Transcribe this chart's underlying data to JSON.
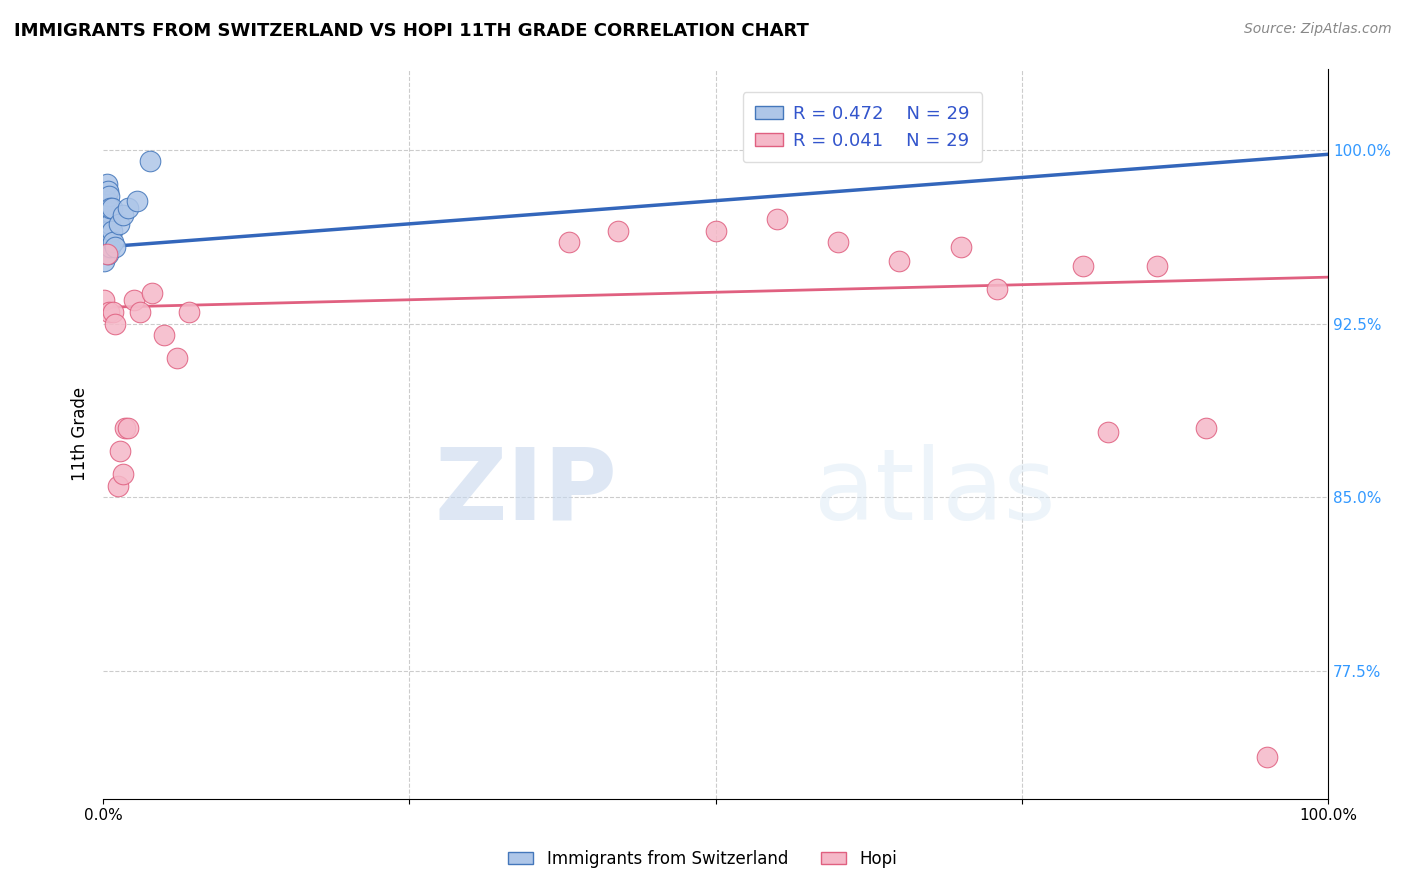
{
  "title": "IMMIGRANTS FROM SWITZERLAND VS HOPI 11TH GRADE CORRELATION CHART",
  "source": "Source: ZipAtlas.com",
  "ylabel": "11th Grade",
  "yticks": [
    0.775,
    0.85,
    0.925,
    1.0
  ],
  "ytick_labels": [
    "77.5%",
    "85.0%",
    "92.5%",
    "100.0%"
  ],
  "xmin": 0.0,
  "xmax": 1.0,
  "ymin": 0.72,
  "ymax": 1.035,
  "legend_r1": "R = 0.472",
  "legend_n1": "N = 29",
  "legend_r2": "R = 0.041",
  "legend_n2": "N = 29",
  "color_swiss_fill": "#aec6e8",
  "color_swiss_edge": "#4477bb",
  "color_hopi_fill": "#f5b8c8",
  "color_hopi_edge": "#e06080",
  "color_swiss_line": "#3366bb",
  "color_hopi_line": "#e06080",
  "watermark_zip": "ZIP",
  "watermark_atlas": "atlas",
  "swiss_x": [
    0.001,
    0.001,
    0.001,
    0.002,
    0.002,
    0.002,
    0.003,
    0.003,
    0.003,
    0.003,
    0.004,
    0.004,
    0.004,
    0.004,
    0.005,
    0.005,
    0.005,
    0.006,
    0.006,
    0.006,
    0.007,
    0.007,
    0.008,
    0.01,
    0.013,
    0.016,
    0.02,
    0.028,
    0.038
  ],
  "swiss_y": [
    0.952,
    0.962,
    0.972,
    0.96,
    0.97,
    0.978,
    0.958,
    0.968,
    0.978,
    0.985,
    0.955,
    0.965,
    0.975,
    0.982,
    0.963,
    0.973,
    0.98,
    0.958,
    0.968,
    0.975,
    0.965,
    0.975,
    0.96,
    0.958,
    0.968,
    0.972,
    0.975,
    0.978,
    0.995
  ],
  "hopi_x": [
    0.001,
    0.003,
    0.005,
    0.008,
    0.01,
    0.012,
    0.014,
    0.016,
    0.018,
    0.02,
    0.025,
    0.03,
    0.04,
    0.05,
    0.06,
    0.07,
    0.38,
    0.42,
    0.5,
    0.55,
    0.6,
    0.65,
    0.7,
    0.73,
    0.8,
    0.82,
    0.86,
    0.9,
    0.95
  ],
  "hopi_y": [
    0.935,
    0.955,
    0.93,
    0.93,
    0.925,
    0.855,
    0.87,
    0.86,
    0.88,
    0.88,
    0.935,
    0.93,
    0.938,
    0.92,
    0.91,
    0.93,
    0.96,
    0.965,
    0.965,
    0.97,
    0.96,
    0.952,
    0.958,
    0.94,
    0.95,
    0.878,
    0.95,
    0.88,
    0.738
  ],
  "swiss_line_x0": 0.0,
  "swiss_line_x1": 1.0,
  "swiss_line_y0": 0.958,
  "swiss_line_y1": 0.998,
  "hopi_line_x0": 0.0,
  "hopi_line_x1": 1.0,
  "hopi_line_y0": 0.932,
  "hopi_line_y1": 0.945
}
